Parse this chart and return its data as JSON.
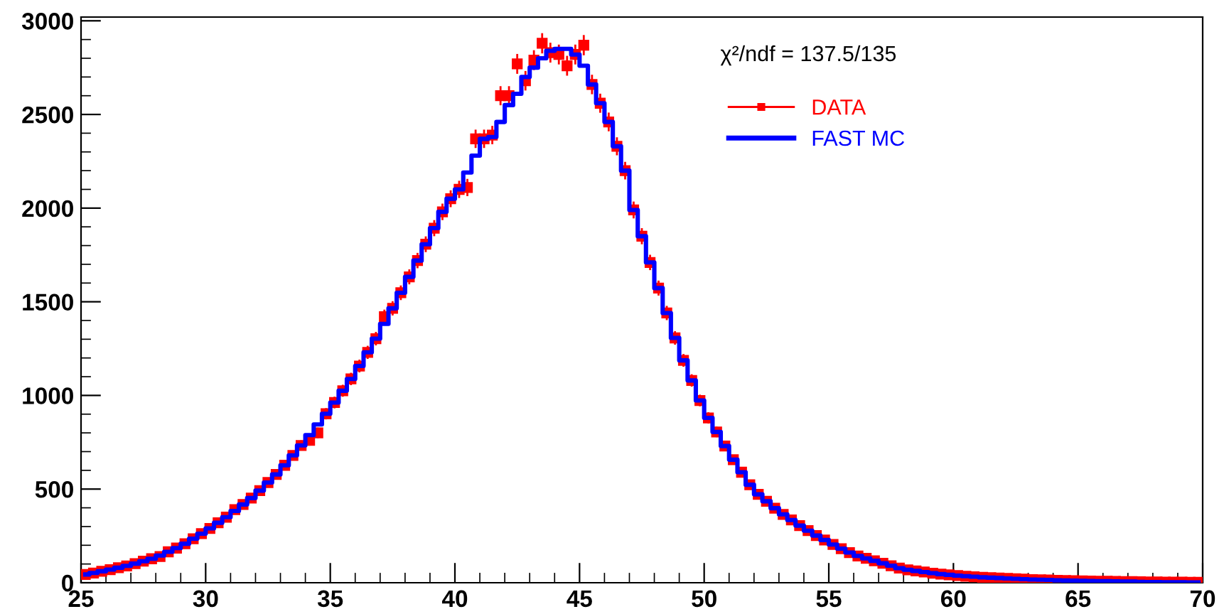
{
  "chart_data": {
    "type": "step",
    "x": [
      25.17,
      25.5,
      25.83,
      26.17,
      26.5,
      26.83,
      27.17,
      27.5,
      27.83,
      28.17,
      28.5,
      28.83,
      29.17,
      29.5,
      29.83,
      30.17,
      30.5,
      30.83,
      31.17,
      31.5,
      31.83,
      32.17,
      32.5,
      32.83,
      33.17,
      33.5,
      33.83,
      34.17,
      34.5,
      34.83,
      35.17,
      35.5,
      35.83,
      36.17,
      36.5,
      36.83,
      37.17,
      37.5,
      37.83,
      38.17,
      38.5,
      38.83,
      39.17,
      39.5,
      39.83,
      40.17,
      40.5,
      40.83,
      41.17,
      41.5,
      41.83,
      42.17,
      42.5,
      42.83,
      43.17,
      43.5,
      43.83,
      44.17,
      44.5,
      44.83,
      45.17,
      45.5,
      45.83,
      46.17,
      46.5,
      46.83,
      47.17,
      47.5,
      47.83,
      48.17,
      48.5,
      48.83,
      49.17,
      49.5,
      49.83,
      50.17,
      50.5,
      50.83,
      51.17,
      51.5,
      51.83,
      52.17,
      52.5,
      52.83,
      53.17,
      53.5,
      53.83,
      54.17,
      54.5,
      54.83,
      55.17,
      55.5,
      55.83,
      56.17,
      56.5,
      56.83,
      57.17,
      57.5,
      57.83,
      58.17,
      58.5,
      58.83,
      59.17,
      59.5,
      59.83,
      60.17,
      60.5,
      60.83,
      61.17,
      61.5,
      61.83,
      62.17,
      62.5,
      62.83,
      63.17,
      63.5,
      63.83,
      64.17,
      64.5,
      64.83,
      65.17,
      65.5,
      65.83,
      66.17,
      66.5,
      66.83,
      67.17,
      67.5,
      67.83,
      68.17,
      68.5,
      68.83,
      69.17,
      69.5,
      69.83
    ],
    "series": [
      {
        "name": "FAST MC",
        "color": "#0000ff",
        "values": [
          44,
          52,
          61,
          70,
          80,
          90,
          102,
          115,
          128,
          145,
          165,
          185,
          208,
          235,
          262,
          290,
          320,
          350,
          383,
          418,
          452,
          492,
          535,
          578,
          627,
          680,
          733,
          788,
          845,
          902,
          962,
          1025,
          1088,
          1157,
          1230,
          1303,
          1382,
          1465,
          1548,
          1633,
          1720,
          1807,
          1893,
          1980,
          2050,
          2100,
          2190,
          2280,
          2370,
          2380,
          2460,
          2550,
          2610,
          2700,
          2750,
          2800,
          2840,
          2850,
          2850,
          2820,
          2760,
          2660,
          2560,
          2460,
          2330,
          2200,
          1990,
          1850,
          1710,
          1573,
          1440,
          1307,
          1187,
          1080,
          973,
          880,
          805,
          730,
          657,
          590,
          523,
          472,
          435,
          398,
          365,
          335,
          305,
          278,
          252,
          228,
          204,
          182,
          161,
          143,
          130,
          117,
          104,
          91,
          78,
          69,
          63,
          57,
          51,
          46,
          42,
          38,
          35,
          32,
          29,
          27,
          25,
          23,
          21,
          19,
          17,
          16,
          15,
          13,
          12,
          11,
          10,
          9,
          8,
          8,
          7,
          6,
          6,
          5,
          4,
          4,
          3,
          3,
          3,
          2,
          2
        ]
      },
      {
        "name": "DATA",
        "type": "scatter",
        "color": "#ff0000",
        "marker": "square",
        "values": [
          44,
          52,
          61,
          70,
          80,
          90,
          102,
          115,
          128,
          140,
          165,
          185,
          208,
          235,
          262,
          290,
          320,
          350,
          390,
          418,
          452,
          492,
          535,
          578,
          627,
          680,
          733,
          760,
          800,
          902,
          962,
          1025,
          1088,
          1157,
          1230,
          1303,
          1420,
          1465,
          1548,
          1633,
          1720,
          1807,
          1893,
          1980,
          2050,
          2100,
          2110,
          2370,
          2370,
          2390,
          2600,
          2600,
          2770,
          2680,
          2790,
          2880,
          2830,
          2820,
          2760,
          2820,
          2870,
          2660,
          2560,
          2460,
          2330,
          2200,
          1990,
          1850,
          1710,
          1573,
          1440,
          1307,
          1187,
          1080,
          973,
          880,
          805,
          730,
          657,
          590,
          523,
          472,
          435,
          398,
          365,
          335,
          305,
          278,
          252,
          228,
          204,
          182,
          161,
          143,
          130,
          117,
          104,
          91,
          78,
          69,
          63,
          57,
          51,
          46,
          42,
          38,
          35,
          32,
          29,
          27,
          25,
          23,
          21,
          19,
          17,
          16,
          15,
          13,
          12,
          11,
          10,
          9,
          8,
          8,
          7,
          6,
          6,
          5,
          4,
          4,
          3,
          3,
          3,
          2,
          2
        ],
        "errors": [
          7,
          7,
          8,
          8,
          9,
          9,
          10,
          11,
          11,
          12,
          13,
          14,
          14,
          15,
          16,
          17,
          18,
          19,
          20,
          20,
          21,
          22,
          23,
          24,
          25,
          26,
          27,
          28,
          28,
          30,
          31,
          32,
          33,
          34,
          35,
          36,
          38,
          38,
          39,
          40,
          41,
          42,
          43,
          44,
          45,
          46,
          46,
          49,
          49,
          49,
          51,
          51,
          53,
          52,
          53,
          54,
          53,
          53,
          53,
          53,
          54,
          52,
          51,
          50,
          48,
          47,
          45,
          43,
          41,
          40,
          38,
          36,
          34,
          33,
          31,
          30,
          28,
          27,
          26,
          24,
          23,
          22,
          21,
          20,
          19,
          18,
          17,
          17,
          16,
          15,
          14,
          13,
          13,
          12,
          11,
          11,
          10,
          10,
          9,
          8,
          8,
          8,
          7,
          7,
          6,
          6,
          6,
          5,
          5,
          5,
          5,
          5,
          4,
          4,
          4,
          4,
          null,
          null,
          null,
          null,
          null,
          null,
          null,
          null,
          null,
          null,
          null,
          null,
          null,
          null,
          null,
          null,
          null,
          null,
          null
        ]
      }
    ],
    "xlim": [
      25,
      70
    ],
    "ylim": [
      0,
      3020
    ],
    "xticks": [
      25,
      30,
      35,
      40,
      45,
      50,
      55,
      60,
      65,
      70
    ],
    "yticks": [
      0,
      500,
      1000,
      1500,
      2000,
      2500,
      3000
    ],
    "annotations": [
      "χ²/ndf = 137.5/135"
    ],
    "legend": "top right",
    "grid": false
  }
}
